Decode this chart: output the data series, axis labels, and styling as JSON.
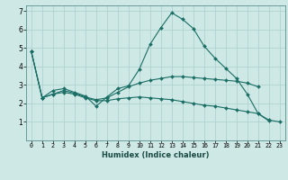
{
  "xlabel": "Humidex (Indice chaleur)",
  "background_color": "#cde8e5",
  "grid_color": "#aacfcc",
  "line_color": "#1a6e65",
  "xlim": [
    -0.5,
    23.5
  ],
  "ylim": [
    0,
    7.3
  ],
  "xticks": [
    0,
    1,
    2,
    3,
    4,
    5,
    6,
    7,
    8,
    9,
    10,
    11,
    12,
    13,
    14,
    15,
    16,
    17,
    18,
    19,
    20,
    21,
    22,
    23
  ],
  "yticks": [
    1,
    2,
    3,
    4,
    5,
    6,
    7
  ],
  "series1_x": [
    0,
    1,
    2,
    3,
    4,
    5,
    6,
    7,
    8,
    9,
    10,
    11,
    12,
    13,
    14,
    15,
    16,
    17,
    18,
    19,
    20,
    21,
    22
  ],
  "series1_y": [
    4.8,
    2.3,
    2.7,
    2.8,
    2.6,
    2.4,
    1.85,
    2.35,
    2.8,
    2.95,
    3.85,
    5.2,
    6.1,
    6.9,
    6.55,
    6.05,
    5.1,
    4.45,
    3.9,
    3.35,
    2.5,
    1.45,
    1.05
  ],
  "series2_x": [
    0,
    1,
    2,
    3,
    4,
    5,
    6,
    7,
    8,
    9,
    10,
    11,
    12,
    13,
    14,
    15,
    16,
    17,
    18,
    19,
    20,
    21
  ],
  "series2_y": [
    4.8,
    2.3,
    2.5,
    2.7,
    2.55,
    2.35,
    2.2,
    2.3,
    2.6,
    2.9,
    3.1,
    3.25,
    3.35,
    3.45,
    3.45,
    3.4,
    3.35,
    3.3,
    3.25,
    3.2,
    3.1,
    2.9
  ],
  "series3_x": [
    0,
    1,
    2,
    3,
    4,
    5,
    6,
    7,
    8,
    9,
    10,
    11,
    12,
    13,
    14,
    15,
    16,
    17,
    18,
    19,
    20,
    21,
    22,
    23
  ],
  "series3_y": [
    4.8,
    2.3,
    2.5,
    2.6,
    2.5,
    2.3,
    2.15,
    2.15,
    2.25,
    2.3,
    2.35,
    2.3,
    2.25,
    2.2,
    2.1,
    2.0,
    1.9,
    1.85,
    1.75,
    1.65,
    1.55,
    1.45,
    1.1,
    1.0
  ]
}
